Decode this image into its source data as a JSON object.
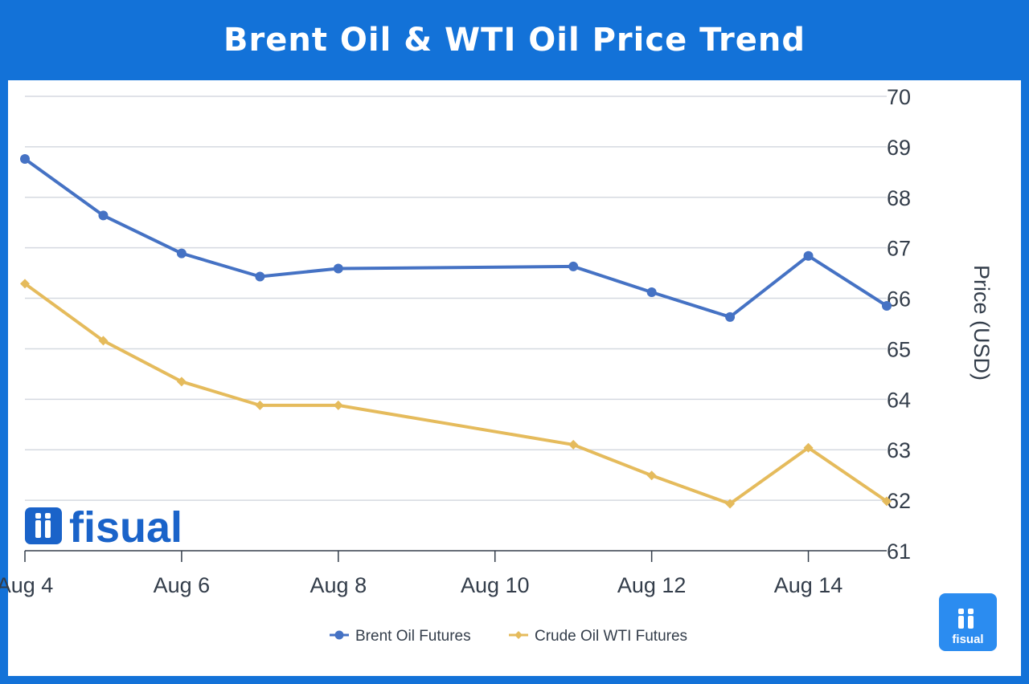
{
  "header": {
    "title": "Brent Oil & WTI Oil Price Trend"
  },
  "brand": {
    "logo_text": "fisual",
    "badge_text": "fisual"
  },
  "colors": {
    "background": "#1372d8",
    "brent": "#4572c4",
    "wti": "#e5bb5c"
  },
  "chart_data": {
    "type": "line",
    "title": "Brent Oil & WTI Oil Price Trend",
    "xlabel": "",
    "ylabel": "Price (USD)",
    "ylim": [
      61,
      70
    ],
    "xlim": [
      "2025-08-04",
      "2025-08-15"
    ],
    "y_axis_position": "right",
    "yticks": [
      61,
      62,
      63,
      64,
      65,
      66,
      67,
      68,
      69,
      70
    ],
    "xticks": [
      {
        "date": "2025-08-04",
        "label": "Aug 4"
      },
      {
        "date": "2025-08-06",
        "label": "Aug 6"
      },
      {
        "date": "2025-08-08",
        "label": "Aug 8"
      },
      {
        "date": "2025-08-10",
        "label": "Aug 10"
      },
      {
        "date": "2025-08-12",
        "label": "Aug 12"
      },
      {
        "date": "2025-08-14",
        "label": "Aug 14"
      }
    ],
    "grid": true,
    "legend_position": "bottom-center",
    "x": [
      "2025-08-04",
      "2025-08-05",
      "2025-08-06",
      "2025-08-07",
      "2025-08-08",
      "2025-08-11",
      "2025-08-12",
      "2025-08-13",
      "2025-08-14",
      "2025-08-15"
    ],
    "series": [
      {
        "name": "Brent Oil Futures",
        "marker": "circle",
        "values": [
          68.76,
          67.64,
          66.89,
          66.43,
          66.59,
          66.63,
          66.12,
          65.63,
          66.84,
          65.85
        ]
      },
      {
        "name": "Crude Oil WTI Futures",
        "marker": "diamond",
        "values": [
          66.29,
          65.16,
          64.35,
          63.88,
          63.88,
          63.1,
          62.49,
          61.93,
          63.04,
          61.98
        ]
      }
    ]
  }
}
